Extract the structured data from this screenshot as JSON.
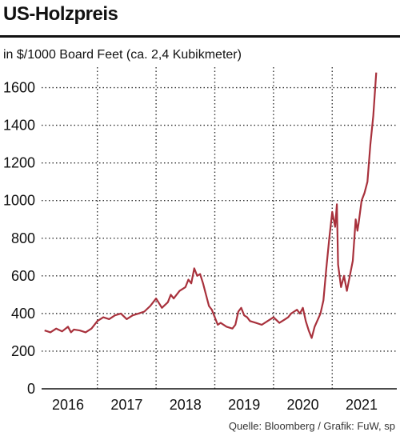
{
  "title": "US-Holzpreis",
  "subtitle": "in $/1000 Board Feet (ca. 2,4 Kubikmeter)",
  "source": "Quelle: Bloomberg / Grafik: FuW, sp",
  "colors": {
    "series": "#a8313c",
    "axis": "#111111",
    "grid": "#333333"
  },
  "chart_data": {
    "type": "line",
    "title": "US-Holzpreis",
    "subtitle": "in $/1000 Board Feet (ca. 2,4 Kubikmeter)",
    "xlabel": "",
    "ylabel": "",
    "ylim": [
      0,
      1700
    ],
    "xlim": [
      2015.55,
      2021.6
    ],
    "y_ticks": [
      0,
      200,
      400,
      600,
      800,
      1000,
      1200,
      1400,
      1600
    ],
    "x_tick_labels": [
      "2016",
      "2017",
      "2018",
      "2019",
      "2020",
      "2021"
    ],
    "x_tick_positions": [
      2016.0,
      2017.0,
      2018.0,
      2019.0,
      2020.0,
      2021.0
    ],
    "grid": true,
    "series": [
      {
        "x": [
          2015.6,
          2015.65,
          2015.7,
          2015.8,
          2015.9,
          2016.0,
          2016.05,
          2016.1,
          2016.2,
          2016.3,
          2016.4,
          2016.5,
          2016.6,
          2016.7,
          2016.8,
          2016.9,
          2017.0,
          2017.1,
          2017.2,
          2017.3,
          2017.4,
          2017.5,
          2017.6,
          2017.7,
          2017.75,
          2017.8,
          2017.9,
          2018.0,
          2018.05,
          2018.1,
          2018.15,
          2018.2,
          2018.25,
          2018.3,
          2018.35,
          2018.4,
          2018.45,
          2018.5,
          2018.55,
          2018.6,
          2018.7,
          2018.8,
          2018.85,
          2018.9,
          2018.95,
          2019.0,
          2019.05,
          2019.1,
          2019.2,
          2019.3,
          2019.4,
          2019.5,
          2019.6,
          2019.7,
          2019.75,
          2019.8,
          2019.85,
          2019.9,
          2019.95,
          2020.0,
          2020.05,
          2020.1,
          2020.15,
          2020.2,
          2020.3,
          2020.35,
          2020.4,
          2020.45,
          2020.5,
          2020.55,
          2020.58,
          2020.6,
          2020.65,
          2020.7,
          2020.75,
          2020.8,
          2020.85,
          2020.9,
          2020.93,
          2020.95,
          2021.0,
          2021.05,
          2021.1,
          2021.15,
          2021.2,
          2021.25
        ],
        "y": [
          310,
          305,
          300,
          320,
          305,
          330,
          300,
          315,
          310,
          300,
          320,
          360,
          380,
          370,
          390,
          400,
          370,
          390,
          400,
          410,
          440,
          480,
          430,
          460,
          500,
          480,
          520,
          540,
          580,
          560,
          640,
          600,
          610,
          560,
          500,
          440,
          420,
          380,
          340,
          350,
          330,
          320,
          340,
          410,
          430,
          390,
          380,
          360,
          350,
          340,
          360,
          380,
          350,
          370,
          380,
          400,
          410,
          420,
          400,
          430,
          360,
          310,
          270,
          330,
          400,
          470,
          640,
          800,
          940,
          860,
          980,
          660,
          540,
          600,
          520,
          600,
          680,
          900,
          840,
          880,
          1000,
          1040,
          1100,
          1300,
          1450,
          1680
        ]
      }
    ]
  }
}
